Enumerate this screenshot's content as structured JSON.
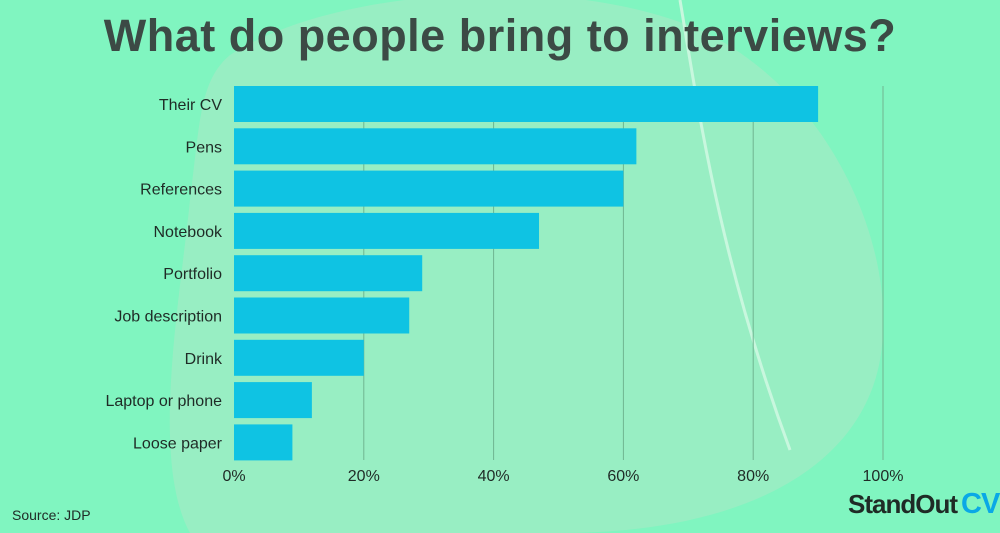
{
  "title": "What do people bring to interviews?",
  "source": "Source: JDP",
  "logo": {
    "part1": "StandOut",
    "part2": "CV"
  },
  "colors": {
    "background": "#80f5c0",
    "bar": "#0fc3e3",
    "blob": "#9aedc3",
    "grid": "#6fb590"
  },
  "chart_data": {
    "type": "bar",
    "orientation": "horizontal",
    "title": "What do people bring to interviews?",
    "categories": [
      "Their CV",
      "Pens",
      "References",
      "Notebook",
      "Portfolio",
      "Job description",
      "Drink",
      "Laptop or phone",
      "Loose paper"
    ],
    "values": [
      90,
      62,
      60,
      47,
      29,
      27,
      20,
      12,
      9
    ],
    "unit": "%",
    "xlim": [
      0,
      100
    ],
    "xticks": [
      0,
      20,
      40,
      60,
      80,
      100
    ],
    "xtick_labels": [
      "0%",
      "20%",
      "40%",
      "60%",
      "80%",
      "100%"
    ],
    "xlabel": "",
    "ylabel": "",
    "grid": true
  }
}
